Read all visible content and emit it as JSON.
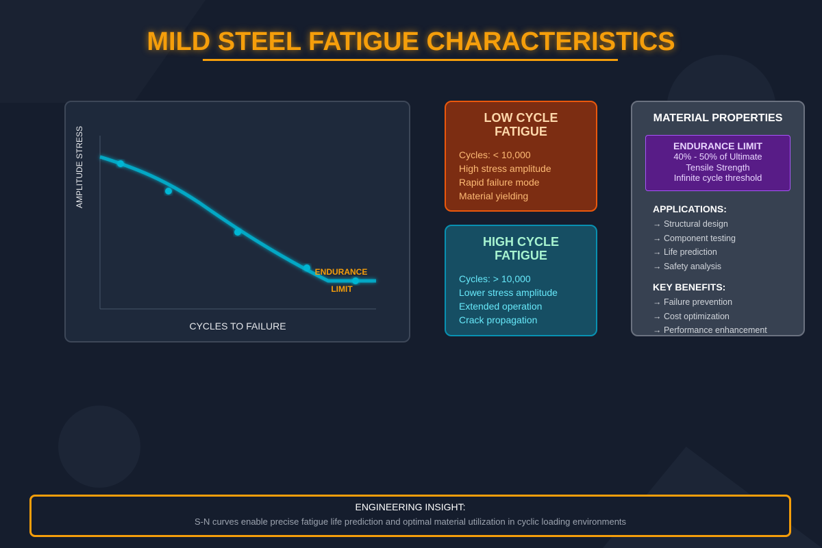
{
  "title": "MILD STEEL FATIGUE CHARACTERISTICS",
  "chart": {
    "y_label": "AMPLITUDE STRESS",
    "x_label": "CYCLES TO FAILURE",
    "annotation_line1": "ENDURANCE",
    "annotation_line2": "LIMIT",
    "curve_color": "#06b6d4",
    "annotation_color": "#f59e0b"
  },
  "low_cycle": {
    "title_line1": "LOW CYCLE",
    "title_line2": "FATIGUE",
    "items": [
      "Cycles: < 10,000",
      "High stress amplitude",
      "Rapid failure mode",
      "Material yielding"
    ]
  },
  "high_cycle": {
    "title_line1": "HIGH CYCLE",
    "title_line2": "FATIGUE",
    "items": [
      "Cycles: > 10,000",
      "Lower stress amplitude",
      "Extended operation",
      "Crack propagation"
    ]
  },
  "properties": {
    "title": "MATERIAL PROPERTIES",
    "endurance": {
      "title": "ENDURANCE LIMIT",
      "lines": [
        "40% - 50% of Ultimate",
        "Tensile Strength",
        "Infinite cycle threshold"
      ]
    },
    "applications_title": "APPLICATIONS:",
    "applications": [
      "→ Structural design",
      "→ Component testing",
      "→ Life prediction",
      "→ Safety analysis"
    ],
    "benefits_title": "KEY BENEFITS:",
    "benefits": [
      "→ Failure prevention",
      "→ Cost optimization",
      "→ Performance enhancement"
    ]
  },
  "insight": {
    "title": "ENGINEERING INSIGHT:",
    "text": "S-N curves enable precise fatigue life prediction and optimal material utilization in cyclic loading environments"
  }
}
